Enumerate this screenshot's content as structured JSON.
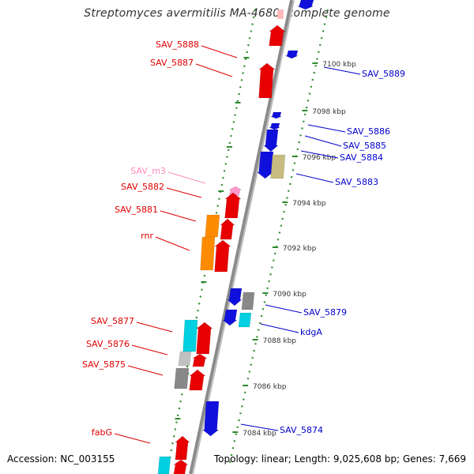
{
  "title": "Streptomyces avermitilis MA-4680, complete genome",
  "footer": {
    "accession": "Accession: NC_003155",
    "summary": "Topology: linear; Length: 9,025,608 bp; Genes: 7,669"
  },
  "colors": {
    "backbone": "#8a8a8a",
    "ruler_dots": "#2e8b2e",
    "left_labels": "#e00000",
    "right_labels": "#0000cc",
    "rna_label": "#ff88bb",
    "gene_red": "#e80000",
    "gene_blue": "#1010dd",
    "gene_orange": "#ff8c00",
    "gene_cyan": "#00d0e0",
    "gene_gray": "#888888",
    "gene_olive": "#c8bc80",
    "gene_pink": "#ff99cc",
    "gene_silver": "#c0c0c0"
  },
  "ruler": [
    {
      "label": "7100 kbp"
    },
    {
      "label": "7098 kbp"
    },
    {
      "label": "7096 kbp"
    },
    {
      "label": "7094 kbp"
    },
    {
      "label": "7092 kbp"
    },
    {
      "label": "7090 kbp"
    },
    {
      "label": "7088 kbp"
    },
    {
      "label": "7086 kbp"
    },
    {
      "label": "7084 kbp"
    }
  ],
  "left_labels": [
    {
      "text": "SAV_5888"
    },
    {
      "text": "SAV_5887"
    },
    {
      "text": "SAV_m3"
    },
    {
      "text": "SAV_5882"
    },
    {
      "text": "SAV_5881"
    },
    {
      "text": "rnr"
    },
    {
      "text": "SAV_5877"
    },
    {
      "text": "SAV_5876"
    },
    {
      "text": "SAV_5875"
    },
    {
      "text": "fabG"
    }
  ],
  "right_labels": [
    {
      "text": "SAV_5889"
    },
    {
      "text": "SAV_5886"
    },
    {
      "text": "SAV_5885"
    },
    {
      "text": "SAV_5884"
    },
    {
      "text": "SAV_5883"
    },
    {
      "text": "SAV_5879"
    },
    {
      "text": "kdgA"
    },
    {
      "text": "SAV_5874"
    }
  ]
}
